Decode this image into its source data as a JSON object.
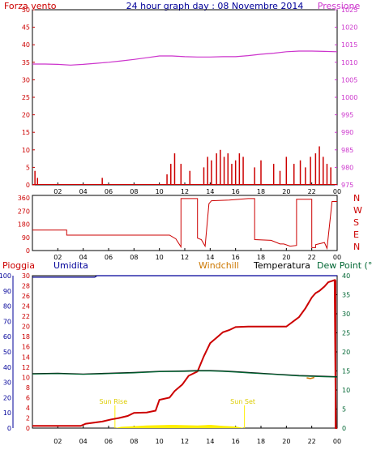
{
  "header": {
    "left_title": "Forza vento",
    "center_title": "24 hour graph day : 08 Novembre 2014",
    "right_title": "Pressione"
  },
  "colors": {
    "wind": "#cc0000",
    "pressure": "#cc33cc",
    "direction": "#cc0000",
    "rain": "#cc0000",
    "humidity": "#000099",
    "windchill": "#cc7700",
    "temperature": "#000000",
    "dewpoint": "#006633",
    "solar": "#ffee00",
    "gust_green": "#00aa00",
    "gust_blue": "#0000ff",
    "frame": "#000000"
  },
  "chart_data": [
    {
      "id": "wind-pressure",
      "type": "line",
      "x_ticks": [
        "02",
        "04",
        "06",
        "08",
        "10",
        "12",
        "14",
        "16",
        "18",
        "20",
        "22",
        "00"
      ],
      "left_axis": {
        "label": "Forza vento",
        "min": 0,
        "max": 50,
        "ticks": [
          0,
          5,
          10,
          15,
          20,
          25,
          30,
          35,
          40,
          45,
          50
        ]
      },
      "right_axis": {
        "label": "Pressione",
        "min": 975,
        "max": 1025,
        "ticks": [
          975,
          980,
          985,
          990,
          995,
          1000,
          1005,
          1010,
          1015,
          1020,
          1025
        ]
      },
      "series": [
        {
          "name": "Pressione",
          "axis": "right",
          "x": [
            0,
            1,
            2,
            3,
            4,
            5,
            6,
            7,
            8,
            9,
            10,
            11,
            12,
            13,
            14,
            15,
            16,
            17,
            18,
            19,
            20,
            21,
            22,
            23,
            24
          ],
          "y": [
            1009.5,
            1009.5,
            1009.4,
            1009.2,
            1009.4,
            1009.7,
            1010.0,
            1010.4,
            1010.8,
            1011.3,
            1011.8,
            1011.8,
            1011.6,
            1011.5,
            1011.5,
            1011.6,
            1011.6,
            1011.9,
            1012.3,
            1012.6,
            1013.0,
            1013.2,
            1013.2,
            1013.1,
            1013.0
          ]
        },
        {
          "name": "Forza vento",
          "axis": "left",
          "x": [
            0.2,
            0.4,
            5.5,
            10.6,
            10.9,
            11.2,
            11.7,
            12.4,
            13.5,
            13.8,
            14.1,
            14.5,
            14.8,
            15.1,
            15.4,
            15.7,
            16.0,
            16.3,
            16.6,
            17.5,
            18.0,
            19.0,
            19.5,
            20.0,
            20.6,
            21.1,
            21.5,
            21.9,
            22.3,
            22.6,
            22.9,
            23.2,
            23.5
          ],
          "y": [
            4,
            2,
            2,
            3,
            6,
            9,
            6,
            4,
            5,
            8,
            7,
            9,
            10,
            8,
            9,
            6,
            7,
            9,
            8,
            5,
            7,
            6,
            4,
            8,
            6,
            7,
            5,
            8,
            9,
            11,
            8,
            6,
            5
          ]
        }
      ]
    },
    {
      "id": "wind-direction",
      "type": "line",
      "x_ticks": [
        "02",
        "04",
        "06",
        "08",
        "10",
        "12",
        "14",
        "16",
        "18",
        "20",
        "22",
        "00"
      ],
      "left_axis": {
        "min": 0,
        "max": 360,
        "ticks": [
          0,
          90,
          180,
          270,
          360
        ]
      },
      "right_labels": [
        "N",
        "W",
        "S",
        "E",
        "N"
      ],
      "series": [
        {
          "name": "Direzione vento",
          "x": [
            0,
            2.7,
            2.7,
            10.8,
            11.3,
            11.7,
            11.7,
            13.0,
            13.0,
            13.3,
            13.6,
            13.9,
            14.1,
            15.5,
            17.0,
            17.5,
            17.5,
            18.8,
            19.5,
            19.8,
            20.3,
            20.8,
            20.8,
            22.0,
            22.0,
            22.3,
            22.3,
            23.0,
            23.2,
            23.6,
            24
          ],
          "y": [
            140,
            140,
            105,
            105,
            80,
            25,
            355,
            355,
            85,
            75,
            30,
            320,
            340,
            345,
            355,
            355,
            75,
            70,
            45,
            45,
            30,
            35,
            350,
            350,
            20,
            20,
            40,
            55,
            15,
            335,
            335
          ]
        }
      ]
    },
    {
      "id": "rain-humidity-temperature",
      "type": "line",
      "x_ticks": [
        "02",
        "04",
        "06",
        "08",
        "10",
        "12",
        "14",
        "16",
        "18",
        "20",
        "22",
        "00"
      ],
      "left_axis": {
        "label": "Umidita",
        "min": 0,
        "max": 100,
        "ticks": [
          0,
          10,
          20,
          30,
          40,
          50,
          60,
          70,
          80,
          90,
          100
        ]
      },
      "rain_axis": {
        "label": "Pioggia",
        "min": 0,
        "max": 30,
        "ticks": [
          0,
          2,
          4,
          6,
          8,
          10,
          12,
          14,
          16,
          18,
          20,
          22,
          24,
          26,
          28,
          30
        ]
      },
      "right_axis": {
        "label": "Dew Point (°C)",
        "min": 0,
        "max": 40,
        "ticks": [
          0,
          5,
          10,
          15,
          20,
          25,
          30,
          35,
          40
        ]
      },
      "annotations": [
        {
          "label": "Sun Rise",
          "x": 6.5
        },
        {
          "label": "Sun Set",
          "x": 16.7
        }
      ],
      "legend": [
        "Pioggia",
        "Umidita",
        "Windchill",
        "Temperatura",
        "Dew Point (°C)"
      ],
      "series": [
        {
          "name": "Umidita",
          "axis": "left",
          "x": [
            0,
            4.9,
            5.1,
            24
          ],
          "y": [
            99,
            99,
            100,
            100
          ]
        },
        {
          "name": "Pioggia",
          "axis": "rain",
          "x": [
            0,
            3.8,
            4.2,
            5.5,
            6.2,
            6.8,
            7.5,
            8.0,
            9.0,
            9.7,
            10.0,
            10.8,
            11.2,
            11.8,
            12.3,
            13.0,
            13.5,
            14.0,
            14.6,
            15.0,
            15.5,
            16.0,
            17.0,
            17.8,
            18.5,
            19.3,
            20.0,
            21.0,
            21.5,
            22.0,
            22.3,
            22.6,
            23.0,
            23.3,
            23.8,
            23.9,
            24.0
          ],
          "y": [
            0.5,
            0.5,
            1.0,
            1.5,
            2.0,
            2.3,
            2.8,
            3.5,
            3.6,
            4.0,
            6.5,
            7.0,
            8.5,
            10.0,
            12.0,
            13.0,
            16.5,
            19.5,
            21.0,
            22.0,
            22.5,
            23.2,
            23.3,
            23.3,
            23.3,
            23.3,
            23.3,
            25.5,
            27.5,
            30.0,
            31.0,
            31.5,
            32.5,
            33.5,
            34.0,
            0,
            0
          ],
          "mm_scale": "0-30 mm on left inner axis"
        },
        {
          "name": "Temperatura",
          "axis": "right",
          "x": [
            0,
            2,
            4,
            6,
            8,
            10,
            12,
            13,
            14,
            15,
            16,
            17,
            18,
            19,
            20,
            21,
            22,
            23,
            24
          ],
          "y": [
            14.3,
            14.4,
            14.2,
            14.4,
            14.6,
            14.9,
            15.0,
            15.1,
            15.1,
            15.0,
            14.8,
            14.6,
            14.4,
            14.2,
            14.0,
            13.8,
            13.7,
            13.6,
            13.5
          ]
        },
        {
          "name": "Dew Point (°C)",
          "axis": "right",
          "x": [
            0,
            2,
            4,
            6,
            8,
            10,
            12,
            13,
            14,
            15,
            16,
            17,
            18,
            19,
            20,
            21,
            22,
            23,
            24
          ],
          "y": [
            14.2,
            14.3,
            14.1,
            14.3,
            14.5,
            14.8,
            14.9,
            15.0,
            15.0,
            14.9,
            14.7,
            14.5,
            14.3,
            14.1,
            13.9,
            13.7,
            13.6,
            13.5,
            13.4
          ]
        },
        {
          "name": "Windchill",
          "axis": "right",
          "x": [
            21.6,
            21.9,
            22.2
          ],
          "y": [
            13.2,
            13.0,
            13.3
          ]
        },
        {
          "name": "Solar",
          "axis": "right",
          "x": [
            6.5,
            7,
            8,
            9,
            10,
            11,
            12,
            13,
            14,
            15,
            16,
            16.7
          ],
          "y": [
            0,
            0.4,
            0.6,
            0.8,
            0.9,
            1.0,
            0.9,
            0.8,
            1.0,
            0.7,
            0.5,
            0
          ]
        }
      ]
    }
  ]
}
